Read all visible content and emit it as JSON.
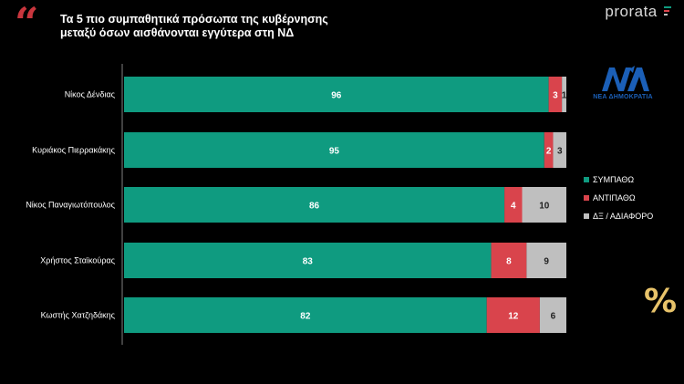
{
  "header": {
    "title_line1": "Τα 5 πιο συμπαθητικά πρόσωπα της κυβέρνησης",
    "title_line2": "μεταξύ όσων αισθάνονται εγγύτερα στη ΝΔ",
    "brand": "prorata",
    "quote_icon": "quote-icon"
  },
  "party_logo": {
    "text": "ΝΕΑ ΔΗΜΟΚΡΑΤΙΑ",
    "icon": "nd-logo-icon",
    "color": "#1b5fb7"
  },
  "percent_icon": "%",
  "colors": {
    "sympatho": "#0f9b80",
    "antipatho": "#d9444c",
    "dx": "#bfbfbf"
  },
  "chart_data": {
    "type": "bar",
    "orientation": "horizontal",
    "stacked": true,
    "categories": [
      "Νίκος Δένδιας",
      "Κυριάκος Πιερρακάκης",
      "Νίκος Παναγιωτόπουλος",
      "Χρήστος Σταϊκούρας",
      "Κωστής Χατζηδάκης"
    ],
    "series": [
      {
        "name": "ΣΥΜΠΑΘΩ",
        "color": "#0f9b80",
        "values": [
          96,
          95,
          86,
          83,
          82
        ]
      },
      {
        "name": "ΑΝΤΙΠΑΘΩ",
        "color": "#d9444c",
        "values": [
          3,
          2,
          4,
          8,
          12
        ]
      },
      {
        "name": "ΔΞ / ΑΔΙΑΦΟΡΟ",
        "color": "#bfbfbf",
        "values": [
          1,
          3,
          10,
          9,
          6
        ]
      }
    ],
    "xlim": [
      0,
      100
    ],
    "legend_position": "right",
    "grid": false,
    "data_labels": true
  }
}
